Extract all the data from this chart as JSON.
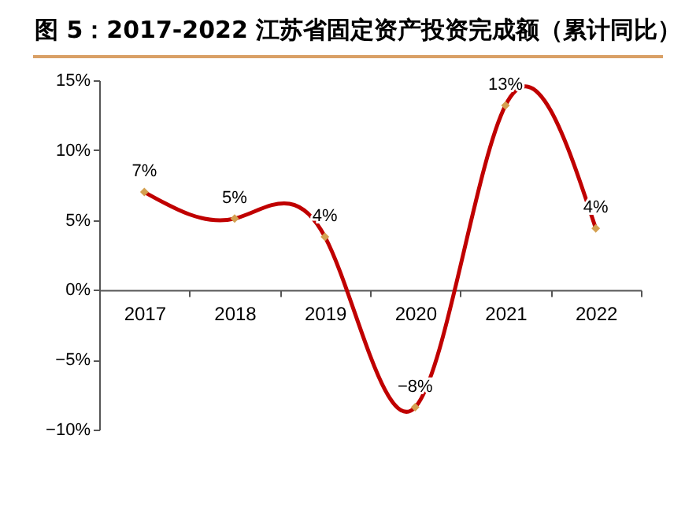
{
  "chart_data": {
    "type": "line",
    "title": "图 5：2017-2022 江苏省固定资产投资完成额（累计同比）",
    "categories": [
      "2017",
      "2018",
      "2019",
      "2020",
      "2021",
      "2022"
    ],
    "series": [
      {
        "color": "#c00000",
        "values": [
          7.0,
          5.1,
          3.8,
          -8.4,
          13.2,
          4.4
        ],
        "value_labels": [
          "7%",
          "5%",
          "4%",
          "−8%",
          "13%",
          "4%"
        ]
      }
    ],
    "ylim": [
      -10,
      15
    ],
    "yticks": [
      {
        "value": -10,
        "label": "−10%"
      },
      {
        "value": -5,
        "label": "−5%"
      },
      {
        "value": 0,
        "label": "0%"
      },
      {
        "value": 5,
        "label": "5%"
      },
      {
        "value": 10,
        "label": "10%"
      },
      {
        "value": 15,
        "label": "15%"
      }
    ],
    "grid": false,
    "marker": "diamond",
    "line_style": "solid"
  }
}
